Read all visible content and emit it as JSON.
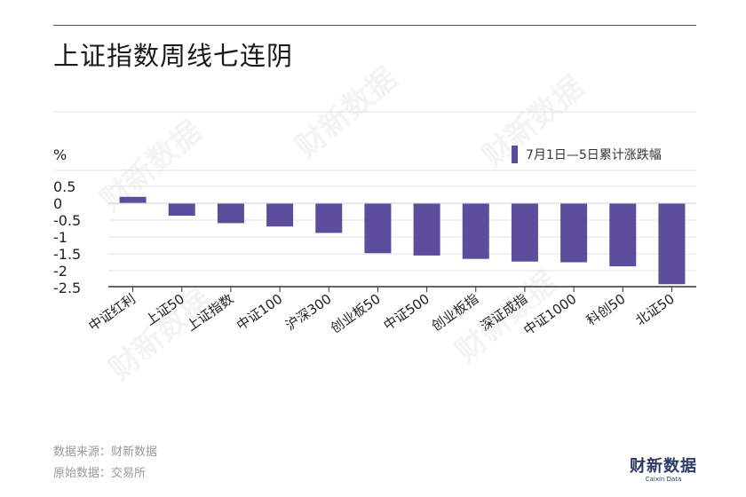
{
  "title": "上证指数周线七连阴",
  "source_line1": "数据来源：财新数据",
  "source_line2": "原始数据：交易所",
  "logo": {
    "main": "财新数据",
    "sub": "Caixin Data"
  },
  "watermark": "财新数据",
  "colors": {
    "bar": "#5b4d9c",
    "grid": "#e3e3e3",
    "axis": "#333333"
  },
  "chart_data": {
    "type": "bar",
    "title": "上证指数周线七连阴",
    "ylabel": "%",
    "ylim": [
      -2.5,
      0.5
    ],
    "yticks": [
      0.5,
      0,
      -0.5,
      -1,
      -1.5,
      -2,
      -2.5
    ],
    "ytick_labels": [
      "0.5",
      "0",
      "-0.5",
      "-1",
      "-1.5",
      "-2",
      "-2.5"
    ],
    "grid": true,
    "legend_position": "top-right",
    "categories": [
      "中证红利",
      "上证50",
      "上证指数",
      "中证100",
      "沪深300",
      "创业板50",
      "中证500",
      "创业板指",
      "深证成指",
      "中证1000",
      "科创50",
      "北证50"
    ],
    "series": [
      {
        "name": "7月1日—5日累计涨跌幅",
        "values": [
          0.19,
          -0.37,
          -0.59,
          -0.69,
          -0.88,
          -1.48,
          -1.55,
          -1.65,
          -1.73,
          -1.75,
          -1.87,
          -2.4
        ]
      }
    ]
  }
}
